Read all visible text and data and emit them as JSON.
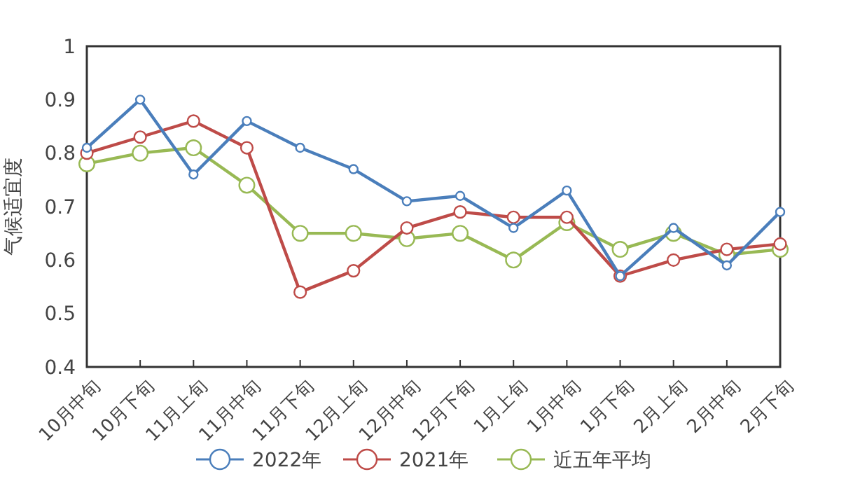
{
  "chart_data": {
    "type": "line",
    "ylabel": "气候适宜度",
    "categories": [
      "10月中旬",
      "10月下旬",
      "11月上旬",
      "11月中旬",
      "11月下旬",
      "12月上旬",
      "12月中旬",
      "12月下旬",
      "1月上旬",
      "1月中旬",
      "1月下旬",
      "2月上旬",
      "2月中旬",
      "2月下旬"
    ],
    "series": [
      {
        "name": "2022年",
        "color": "#4a7ebb",
        "values": [
          0.81,
          0.9,
          0.76,
          0.86,
          0.81,
          0.77,
          0.71,
          0.72,
          0.66,
          0.73,
          0.57,
          0.66,
          0.59,
          0.69
        ]
      },
      {
        "name": "2021年",
        "color": "#be4b48",
        "values": [
          0.8,
          0.83,
          0.86,
          0.81,
          0.54,
          0.58,
          0.66,
          0.69,
          0.68,
          0.68,
          0.57,
          0.6,
          0.62,
          0.63
        ]
      },
      {
        "name": "近五年平均",
        "color": "#98b954",
        "values": [
          0.78,
          0.8,
          0.81,
          0.74,
          0.65,
          0.65,
          0.64,
          0.65,
          0.6,
          0.67,
          0.62,
          0.65,
          0.61,
          0.62
        ]
      }
    ],
    "ylim": [
      0.4,
      1
    ],
    "yticks": [
      0.4,
      0.5,
      0.6,
      0.7,
      0.8,
      0.9,
      1
    ],
    "grid": false,
    "legend": "bottom",
    "marker": "circle",
    "line_style": "solid"
  }
}
